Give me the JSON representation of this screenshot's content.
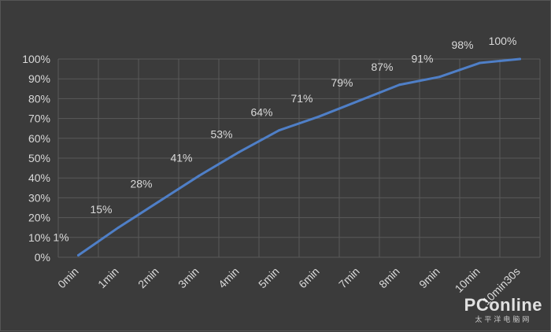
{
  "chart_data": {
    "type": "line",
    "categories": [
      "0min",
      "1min",
      "2min",
      "3min",
      "4min",
      "5min",
      "6min",
      "7min",
      "8min",
      "9min",
      "10min",
      "10min30s"
    ],
    "values": [
      1,
      15,
      28,
      41,
      53,
      64,
      71,
      79,
      87,
      91,
      98,
      100
    ],
    "data_labels": [
      "1%",
      "15%",
      "28%",
      "41%",
      "53%",
      "64%",
      "71%",
      "79%",
      "87%",
      "91%",
      "98%",
      "100%"
    ],
    "yticks": [
      "0%",
      "10%",
      "20%",
      "30%",
      "40%",
      "50%",
      "60%",
      "70%",
      "80%",
      "90%",
      "100%"
    ],
    "ylim": [
      0,
      100
    ],
    "grid": true,
    "title": "",
    "xlabel": "",
    "ylabel": "",
    "colors": {
      "background": "#3b3b3b",
      "grid": "#5a5a5a",
      "line": "#4f7fc7",
      "text": "#d9d9d9"
    }
  },
  "watermark": {
    "main": "PConline",
    "sub": "太平洋电脑网"
  }
}
